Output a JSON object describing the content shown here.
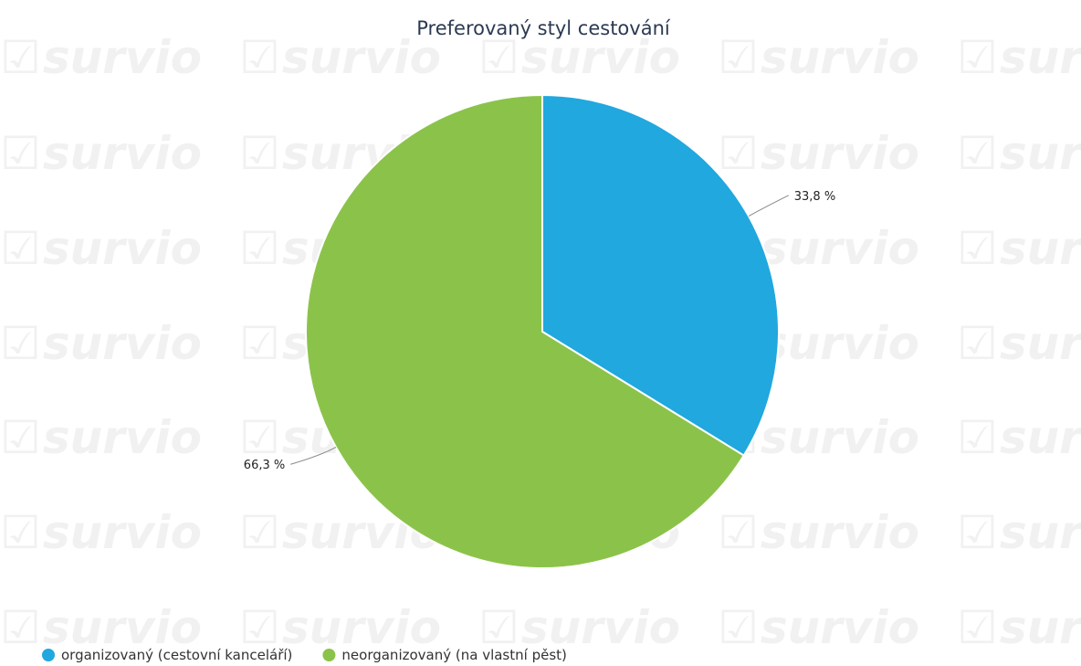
{
  "chart_data": {
    "type": "pie",
    "title": "Preferovaný styl cestování",
    "watermark": "survio",
    "slices": [
      {
        "label": "organizovaný (cestovní kanceláří)",
        "value": 33.8,
        "value_label": "33,8 %",
        "color": "#20a8df"
      },
      {
        "label": "neorganizovaný (na vlastní pěst)",
        "value": 66.3,
        "value_label": "66,3 %",
        "color": "#8bc34a"
      }
    ],
    "start_angle_deg": 0,
    "direction": "clockwise",
    "legend_position": "bottom-left"
  }
}
